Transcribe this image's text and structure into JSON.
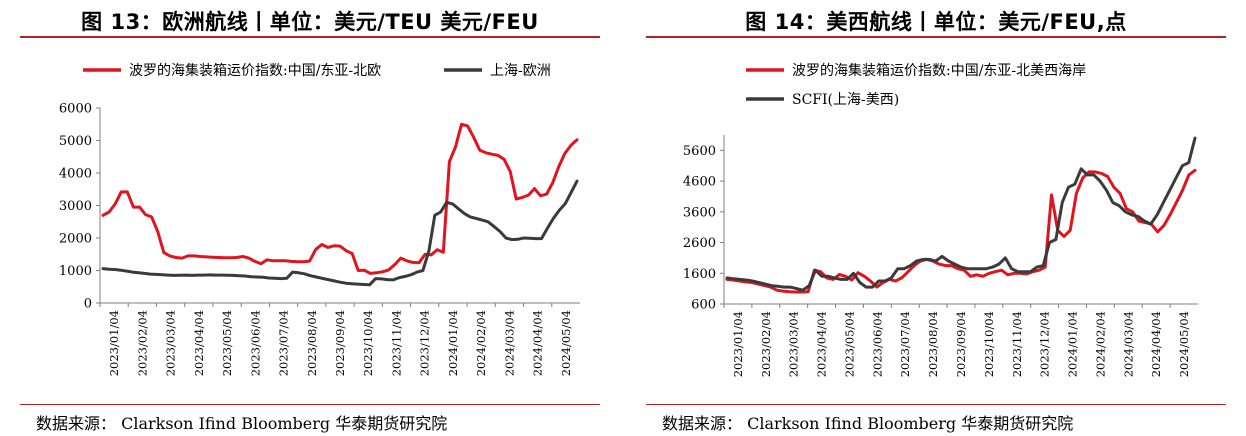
{
  "left": {
    "title": "图 13：欧洲航线丨单位：美元/TEU 美元/FEU",
    "source": "数据来源：  Clarkson Ifind Bloomberg 华泰期货研究院",
    "chart_data": {
      "type": "line",
      "ylim": [
        0,
        6000
      ],
      "yticks": [
        0,
        1000,
        2000,
        3000,
        4000,
        5000,
        6000
      ],
      "xticks": [
        "2023/01/04",
        "2023/02/04",
        "2023/03/04",
        "2023/04/04",
        "2023/05/04",
        "2023/06/04",
        "2023/07/04",
        "2023/08/04",
        "2023/09/04",
        "2023/10/04",
        "2023/11/04",
        "2023/12/04",
        "2024/01/04",
        "2024/02/04",
        "2024/03/04",
        "2024/04/04",
        "2024/05/04"
      ],
      "legend_position": "top",
      "series": [
        {
          "name": "波罗的海集装箱运价指数:中国/东亚-北欧",
          "color": "#e0141e",
          "values": [
            2700,
            2800,
            3050,
            3420,
            3420,
            2950,
            2950,
            2720,
            2650,
            2200,
            1550,
            1450,
            1400,
            1380,
            1450,
            1450,
            1430,
            1420,
            1410,
            1400,
            1390,
            1390,
            1400,
            1430,
            1380,
            1280,
            1210,
            1330,
            1300,
            1300,
            1300,
            1280,
            1270,
            1270,
            1290,
            1650,
            1800,
            1710,
            1760,
            1750,
            1610,
            1520,
            1000,
            1010,
            910,
            930,
            960,
            1020,
            1180,
            1380,
            1300,
            1250,
            1240,
            1500,
            1480,
            1640,
            1560,
            4350,
            4800,
            5500,
            5450,
            5100,
            4700,
            4620,
            4580,
            4540,
            4420,
            4050,
            3200,
            3250,
            3320,
            3520,
            3300,
            3350,
            3700,
            4200,
            4600,
            4850,
            5020
          ]
        },
        {
          "name": "上海-欧洲",
          "color": "#3a3a3a",
          "values": [
            1060,
            1040,
            1030,
            1010,
            980,
            950,
            930,
            910,
            890,
            880,
            870,
            860,
            850,
            855,
            860,
            850,
            860,
            860,
            865,
            860,
            860,
            855,
            850,
            840,
            830,
            810,
            800,
            790,
            770,
            760,
            750,
            760,
            950,
            930,
            900,
            840,
            800,
            760,
            720,
            680,
            640,
            610,
            590,
            580,
            570,
            560,
            750,
            740,
            720,
            710,
            780,
            820,
            870,
            950,
            1000,
            1600,
            2700,
            2800,
            3100,
            3050,
            2900,
            2750,
            2650,
            2600,
            2550,
            2500,
            2350,
            2200,
            2000,
            1950,
            1960,
            2000,
            1990,
            1980,
            1980,
            2300,
            2600,
            2850,
            3050,
            3400,
            3750
          ]
        }
      ]
    }
  },
  "right": {
    "title": "图 14：美西航线丨单位：美元/FEU,点",
    "source": "数据来源：  Clarkson Ifind Bloomberg 华泰期货研究院",
    "chart_data": {
      "type": "line",
      "ylim": [
        600,
        6100
      ],
      "yticks": [
        600,
        1600,
        2600,
        3600,
        4600,
        5600
      ],
      "xticks": [
        "2023/01/04",
        "2023/02/04",
        "2023/03/04",
        "2023/04/04",
        "2023/05/04",
        "2023/06/04",
        "2023/07/04",
        "2023/08/04",
        "2023/09/04",
        "2023/10/04",
        "2023/11/04",
        "2023/12/04",
        "2024/01/04",
        "2024/02/04",
        "2024/03/04",
        "2024/04/04",
        "2024/05/04"
      ],
      "legend_position": "top-left",
      "series": [
        {
          "name": "波罗的海集装箱运价指数:中国/东亚-北美西海岸",
          "color": "#e0141e",
          "values": [
            1400,
            1380,
            1350,
            1320,
            1300,
            1250,
            1200,
            1150,
            1050,
            1020,
            1000,
            990,
            990,
            1000,
            1700,
            1650,
            1450,
            1400,
            1560,
            1500,
            1380,
            1620,
            1500,
            1350,
            1150,
            1300,
            1400,
            1350,
            1450,
            1650,
            1850,
            2000,
            2050,
            2000,
            1900,
            1850,
            1850,
            1750,
            1700,
            1500,
            1550,
            1500,
            1600,
            1650,
            1700,
            1550,
            1600,
            1600,
            1580,
            1650,
            1700,
            1800,
            4150,
            3000,
            2800,
            3000,
            4200,
            4700,
            4900,
            4900,
            4850,
            4750,
            4400,
            4200,
            3700,
            3600,
            3300,
            3250,
            3200,
            2950,
            3150,
            3500,
            3900,
            4300,
            4800,
            4950
          ]
        },
        {
          "name": "SCFI(上海-美西)",
          "color": "#3a3a3a",
          "values": [
            1450,
            1420,
            1400,
            1380,
            1350,
            1300,
            1250,
            1200,
            1180,
            1150,
            1150,
            1100,
            1050,
            1200,
            1700,
            1500,
            1500,
            1450,
            1400,
            1400,
            1600,
            1300,
            1150,
            1150,
            1350,
            1350,
            1450,
            1750,
            1750,
            1850,
            2000,
            2050,
            2050,
            2000,
            2150,
            2000,
            1900,
            1800,
            1750,
            1750,
            1750,
            1750,
            1800,
            1900,
            2100,
            1750,
            1650,
            1650,
            1650,
            1800,
            1850,
            2600,
            2700,
            3900,
            4400,
            4500,
            5000,
            4800,
            4800,
            4600,
            4300,
            3900,
            3800,
            3600,
            3500,
            3450,
            3300,
            3200,
            3500,
            3900,
            4300,
            4700,
            5100,
            5200,
            6000
          ]
        }
      ]
    }
  }
}
